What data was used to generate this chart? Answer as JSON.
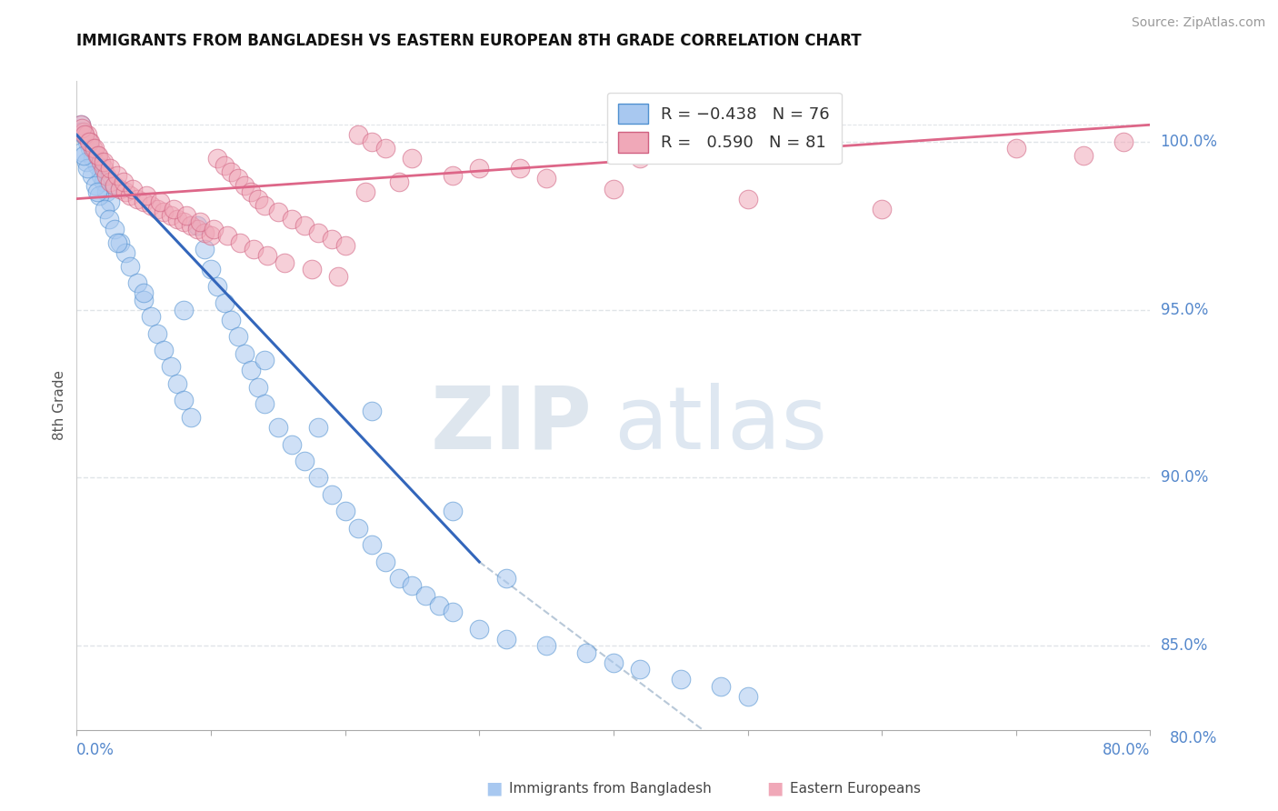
{
  "title": "IMMIGRANTS FROM BANGLADESH VS EASTERN EUROPEAN 8TH GRADE CORRELATION CHART",
  "source": "Source: ZipAtlas.com",
  "ylabel": "8th Grade",
  "y_tick_values": [
    85.0,
    90.0,
    95.0,
    100.0
  ],
  "x_range": [
    0.0,
    80.0
  ],
  "y_range": [
    82.5,
    101.8
  ],
  "y_display_min": 80.0,
  "y_display_max": 100.0,
  "color_bangladesh": "#a8c8f0",
  "color_bangladesh_edge": "#5090d0",
  "color_eastern": "#f0a8b8",
  "color_eastern_edge": "#d06080",
  "color_line_bangladesh": "#3366bb",
  "color_line_eastern": "#dd6688",
  "color_dashed": "#b8c8d8",
  "color_grid": "#e0e4e8",
  "color_ytick_label": "#5588cc",
  "watermark_zip_color": "#d0dce8",
  "watermark_atlas_color": "#c8d8e8",
  "blue_line_x0": 0.0,
  "blue_line_y0": 100.2,
  "blue_line_x1": 30.0,
  "blue_line_y1": 87.5,
  "dashed_line_x0": 30.0,
  "dashed_line_y0": 87.5,
  "dashed_line_x1": 55.0,
  "dashed_line_y1": 80.0,
  "pink_line_x0": 0.0,
  "pink_line_y0": 98.3,
  "pink_line_x1": 80.0,
  "pink_line_y1": 100.5,
  "blue_dots_x": [
    0.3,
    0.5,
    0.8,
    1.0,
    1.2,
    1.5,
    1.8,
    2.0,
    2.2,
    2.5,
    0.4,
    0.7,
    1.1,
    1.4,
    1.7,
    2.1,
    2.4,
    2.8,
    3.2,
    3.6,
    4.0,
    4.5,
    5.0,
    5.5,
    6.0,
    6.5,
    7.0,
    7.5,
    8.0,
    8.5,
    9.0,
    9.5,
    10.0,
    10.5,
    11.0,
    11.5,
    12.0,
    12.5,
    13.0,
    13.5,
    14.0,
    15.0,
    16.0,
    17.0,
    18.0,
    19.0,
    20.0,
    21.0,
    22.0,
    23.0,
    24.0,
    25.0,
    26.0,
    27.0,
    28.0,
    30.0,
    32.0,
    35.0,
    38.0,
    40.0,
    42.0,
    45.0,
    48.0,
    50.0,
    22.0,
    28.0,
    32.0,
    18.0,
    14.0,
    8.0,
    5.0,
    3.0,
    1.5,
    0.8,
    0.5,
    0.3
  ],
  "blue_dots_y": [
    100.5,
    100.2,
    100.0,
    99.8,
    99.5,
    99.3,
    99.0,
    98.8,
    98.5,
    98.2,
    99.7,
    99.4,
    99.0,
    98.7,
    98.4,
    98.0,
    97.7,
    97.4,
    97.0,
    96.7,
    96.3,
    95.8,
    95.3,
    94.8,
    94.3,
    93.8,
    93.3,
    92.8,
    92.3,
    91.8,
    97.5,
    96.8,
    96.2,
    95.7,
    95.2,
    94.7,
    94.2,
    93.7,
    93.2,
    92.7,
    92.2,
    91.5,
    91.0,
    90.5,
    90.0,
    89.5,
    89.0,
    88.5,
    88.0,
    87.5,
    87.0,
    86.8,
    86.5,
    86.2,
    86.0,
    85.5,
    85.2,
    85.0,
    84.8,
    84.5,
    84.3,
    84.0,
    83.8,
    83.5,
    92.0,
    89.0,
    87.0,
    91.5,
    93.5,
    95.0,
    95.5,
    97.0,
    98.5,
    99.2,
    99.6,
    100.3
  ],
  "pink_dots_x": [
    0.3,
    0.5,
    0.8,
    1.0,
    1.2,
    1.5,
    1.8,
    2.0,
    2.2,
    2.5,
    2.8,
    3.2,
    3.6,
    4.0,
    4.5,
    5.0,
    5.5,
    6.0,
    6.5,
    7.0,
    7.5,
    8.0,
    8.5,
    9.0,
    9.5,
    10.0,
    10.5,
    11.0,
    11.5,
    12.0,
    12.5,
    13.0,
    13.5,
    14.0,
    15.0,
    16.0,
    17.0,
    18.0,
    19.0,
    20.0,
    21.0,
    22.0,
    23.0,
    25.0,
    30.0,
    35.0,
    40.0,
    50.0,
    60.0,
    70.0,
    75.0,
    78.0,
    0.4,
    0.6,
    0.9,
    1.3,
    1.6,
    2.0,
    2.5,
    3.0,
    3.5,
    4.2,
    5.2,
    6.2,
    7.2,
    8.2,
    9.2,
    10.2,
    11.2,
    12.2,
    13.2,
    14.2,
    15.5,
    17.5,
    19.5,
    21.5,
    24.0,
    28.0,
    33.0,
    42.0,
    55.0
  ],
  "pink_dots_y": [
    100.5,
    100.3,
    100.2,
    100.0,
    99.8,
    99.6,
    99.4,
    99.2,
    99.0,
    98.8,
    98.7,
    98.6,
    98.5,
    98.4,
    98.3,
    98.2,
    98.1,
    98.0,
    97.9,
    97.8,
    97.7,
    97.6,
    97.5,
    97.4,
    97.3,
    97.2,
    99.5,
    99.3,
    99.1,
    98.9,
    98.7,
    98.5,
    98.3,
    98.1,
    97.9,
    97.7,
    97.5,
    97.3,
    97.1,
    96.9,
    100.2,
    100.0,
    99.8,
    99.5,
    99.2,
    98.9,
    98.6,
    98.3,
    98.0,
    99.8,
    99.6,
    100.0,
    100.4,
    100.2,
    100.0,
    99.8,
    99.6,
    99.4,
    99.2,
    99.0,
    98.8,
    98.6,
    98.4,
    98.2,
    98.0,
    97.8,
    97.6,
    97.4,
    97.2,
    97.0,
    96.8,
    96.6,
    96.4,
    96.2,
    96.0,
    98.5,
    98.8,
    99.0,
    99.2,
    99.5,
    99.8
  ]
}
